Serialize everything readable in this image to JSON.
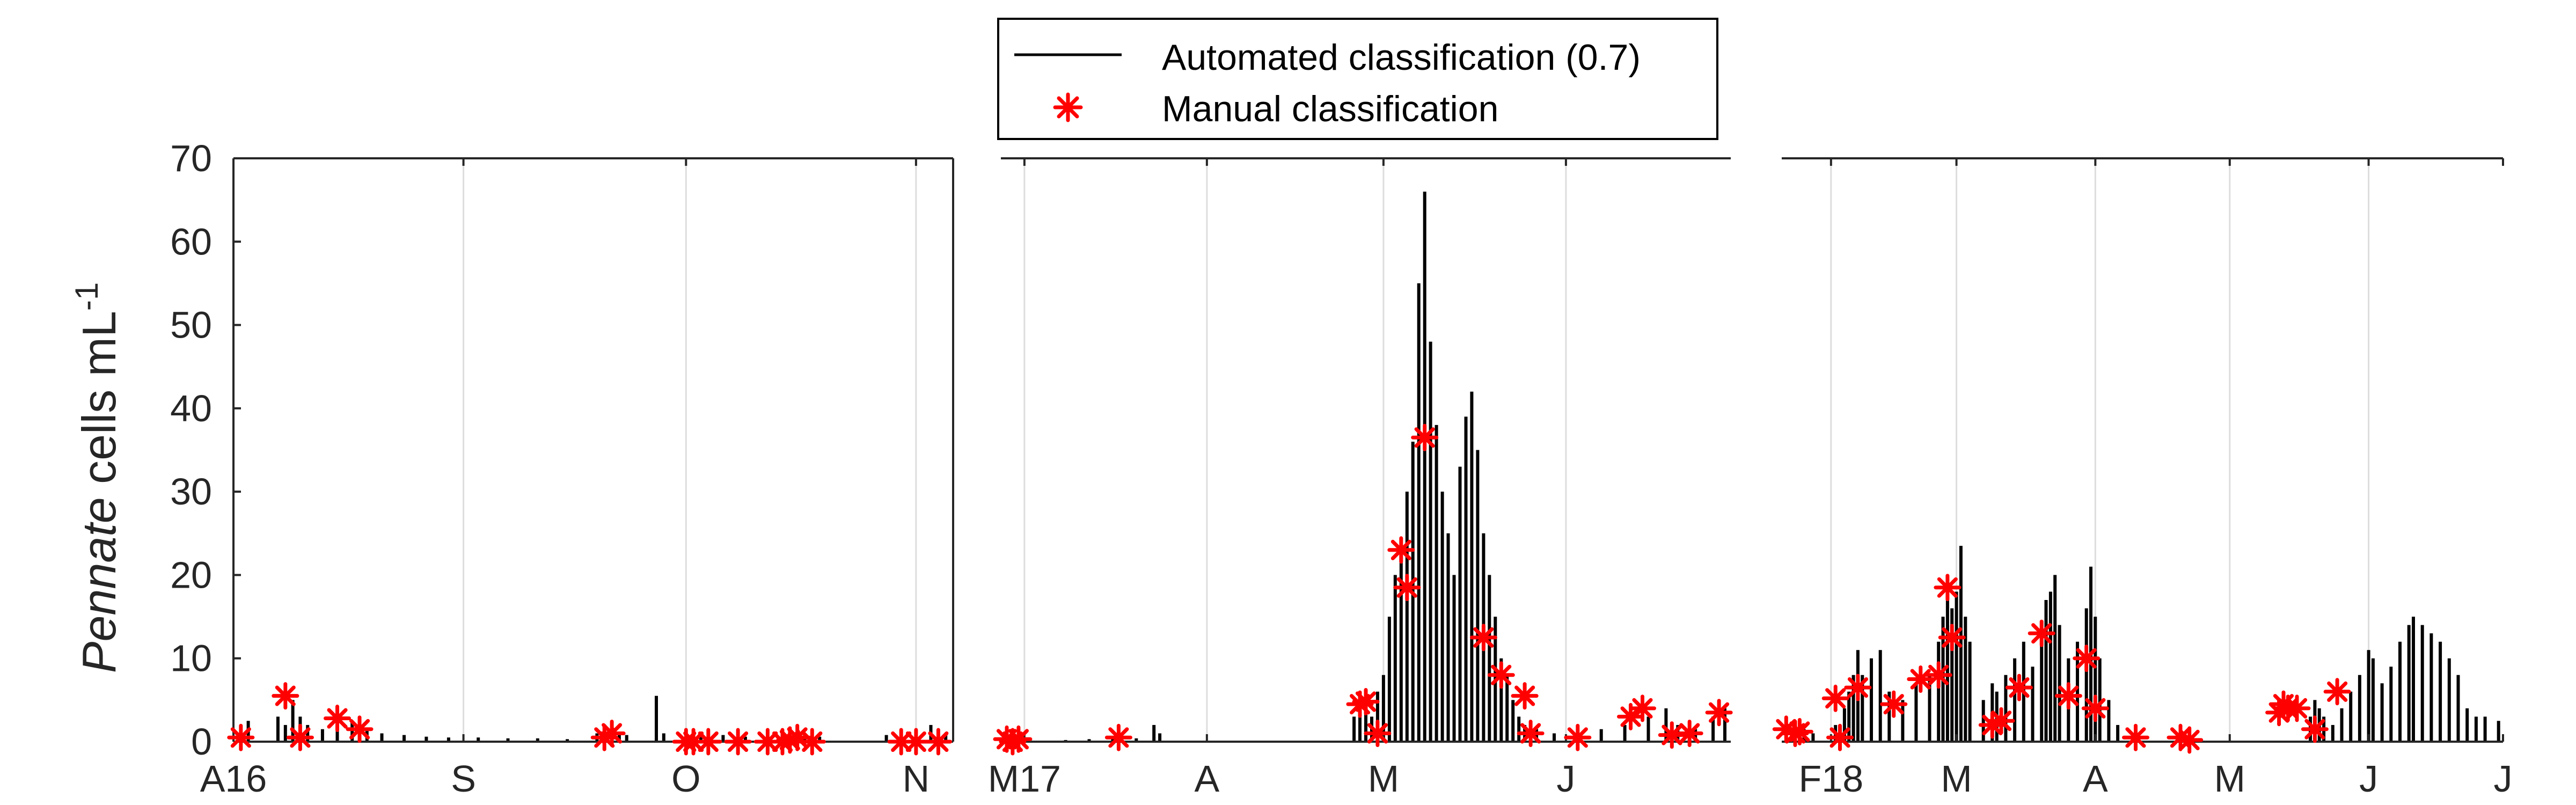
{
  "figure": {
    "ylabel_italic": "Pennate",
    "ylabel_rest": " cells mL",
    "ylabel_sup": "-1"
  },
  "legend": {
    "items": [
      {
        "label": "Automated classification (0.7)",
        "marker": "line",
        "color": "#000000"
      },
      {
        "label": "Manual classification",
        "marker": "asterisk",
        "color": "#ff0000"
      }
    ]
  },
  "colors": {
    "automated": "#000000",
    "manual": "#ff0000",
    "grid": "#dddddd",
    "axis": "#262626"
  },
  "chart_data": [
    {
      "type": "bar",
      "panel": "left",
      "xlim": [
        "2016-08-01",
        "2016-11-06"
      ],
      "ylim": [
        0,
        70
      ],
      "yticks": [
        0,
        10,
        20,
        30,
        40,
        50,
        60,
        70
      ],
      "xticks": [
        {
          "date": "2016-08-01",
          "label": "A16"
        },
        {
          "date": "2016-09-01",
          "label": "S"
        },
        {
          "date": "2016-10-01",
          "label": "O"
        },
        {
          "date": "2016-11-01",
          "label": "N"
        }
      ],
      "grid_x": true,
      "series": [
        {
          "name": "Automated classification (0.7)",
          "kind": "bars",
          "points": [
            [
              "2016-08-03",
              2.5
            ],
            [
              "2016-08-07",
              3.0
            ],
            [
              "2016-08-08",
              2.0
            ],
            [
              "2016-08-09",
              5.0
            ],
            [
              "2016-08-10",
              3.0
            ],
            [
              "2016-08-11",
              2.0
            ],
            [
              "2016-08-13",
              1.5
            ],
            [
              "2016-08-15",
              2.0
            ],
            [
              "2016-08-17",
              2.5
            ],
            [
              "2016-08-19",
              1.5
            ],
            [
              "2016-08-21",
              1.0
            ],
            [
              "2016-08-24",
              0.8
            ],
            [
              "2016-08-27",
              0.6
            ],
            [
              "2016-08-30",
              0.5
            ],
            [
              "2016-09-03",
              0.5
            ],
            [
              "2016-09-07",
              0.4
            ],
            [
              "2016-09-11",
              0.4
            ],
            [
              "2016-09-15",
              0.3
            ],
            [
              "2016-09-19",
              1.0
            ],
            [
              "2016-09-21",
              1.5
            ],
            [
              "2016-09-22",
              1.0
            ],
            [
              "2016-09-23",
              0.8
            ],
            [
              "2016-09-27",
              5.5
            ],
            [
              "2016-09-28",
              1.0
            ],
            [
              "2016-10-01",
              0.8
            ],
            [
              "2016-10-03",
              1.0
            ],
            [
              "2016-10-06",
              0.8
            ],
            [
              "2016-10-09",
              0.6
            ],
            [
              "2016-10-12",
              1.0
            ],
            [
              "2016-10-14",
              0.8
            ],
            [
              "2016-10-16",
              1.2
            ],
            [
              "2016-10-17",
              1.0
            ],
            [
              "2016-10-19",
              0.6
            ],
            [
              "2016-10-28",
              0.8
            ],
            [
              "2016-10-30",
              1.5
            ],
            [
              "2016-11-01",
              1.0
            ],
            [
              "2016-11-03",
              2.0
            ],
            [
              "2016-11-05",
              1.0
            ]
          ]
        },
        {
          "name": "Manual classification",
          "kind": "asterisk",
          "points": [
            [
              "2016-08-02",
              0.5
            ],
            [
              "2016-08-08",
              5.5
            ],
            [
              "2016-08-10",
              0.5
            ],
            [
              "2016-08-15",
              2.8
            ],
            [
              "2016-08-18",
              1.5
            ],
            [
              "2016-09-20",
              0.5
            ],
            [
              "2016-09-21",
              1.0
            ],
            [
              "2016-10-01",
              0.0
            ],
            [
              "2016-10-02",
              0.0
            ],
            [
              "2016-10-04",
              0.0
            ],
            [
              "2016-10-08",
              0.0
            ],
            [
              "2016-10-12",
              0.0
            ],
            [
              "2016-10-14",
              0.0
            ],
            [
              "2016-10-15",
              0.2
            ],
            [
              "2016-10-16",
              0.5
            ],
            [
              "2016-10-18",
              0.0
            ],
            [
              "2016-10-30",
              0.0
            ],
            [
              "2016-11-01",
              0.0
            ],
            [
              "2016-11-04",
              0.0
            ]
          ]
        }
      ]
    },
    {
      "type": "bar",
      "panel": "middle",
      "xlim": [
        "2017-02-25",
        "2017-06-29"
      ],
      "ylim": [
        0,
        70
      ],
      "xticks": [
        {
          "date": "2017-03-01",
          "label": "M17"
        },
        {
          "date": "2017-04-01",
          "label": "A"
        },
        {
          "date": "2017-05-01",
          "label": "M"
        },
        {
          "date": "2017-06-01",
          "label": "J"
        }
      ],
      "grid_x": true,
      "series": [
        {
          "name": "Automated classification (0.7)",
          "kind": "bars",
          "points": [
            [
              "2017-03-01",
              0.2
            ],
            [
              "2017-03-08",
              0.2
            ],
            [
              "2017-03-12",
              0.3
            ],
            [
              "2017-03-16",
              0.5
            ],
            [
              "2017-03-20",
              0.4
            ],
            [
              "2017-03-23",
              2.0
            ],
            [
              "2017-03-24",
              1.0
            ],
            [
              "2017-04-26",
              3.0
            ],
            [
              "2017-04-27",
              4.0
            ],
            [
              "2017-04-28",
              5.0
            ],
            [
              "2017-04-29",
              3.0
            ],
            [
              "2017-04-30",
              6.0
            ],
            [
              "2017-05-01",
              8.0
            ],
            [
              "2017-05-02",
              15.0
            ],
            [
              "2017-05-03",
              20.0
            ],
            [
              "2017-05-04",
              24.0
            ],
            [
              "2017-05-05",
              30.0
            ],
            [
              "2017-05-06",
              36.0
            ],
            [
              "2017-05-07",
              55.0
            ],
            [
              "2017-05-08",
              66.0
            ],
            [
              "2017-05-09",
              48.0
            ],
            [
              "2017-05-10",
              38.0
            ],
            [
              "2017-05-11",
              30.0
            ],
            [
              "2017-05-12",
              25.0
            ],
            [
              "2017-05-13",
              20.0
            ],
            [
              "2017-05-14",
              33.0
            ],
            [
              "2017-05-15",
              39.0
            ],
            [
              "2017-05-16",
              42.0
            ],
            [
              "2017-05-17",
              35.0
            ],
            [
              "2017-05-18",
              25.0
            ],
            [
              "2017-05-19",
              20.0
            ],
            [
              "2017-05-20",
              15.0
            ],
            [
              "2017-05-21",
              10.0
            ],
            [
              "2017-05-22",
              8.0
            ],
            [
              "2017-05-23",
              5.0
            ],
            [
              "2017-05-24",
              3.0
            ],
            [
              "2017-05-25",
              2.0
            ],
            [
              "2017-05-27",
              1.5
            ],
            [
              "2017-05-30",
              1.0
            ],
            [
              "2017-06-03",
              1.0
            ],
            [
              "2017-06-07",
              1.5
            ],
            [
              "2017-06-11",
              2.0
            ],
            [
              "2017-06-15",
              3.0
            ],
            [
              "2017-06-18",
              4.0
            ],
            [
              "2017-06-20",
              2.0
            ],
            [
              "2017-06-23",
              1.5
            ],
            [
              "2017-06-26",
              3.0
            ],
            [
              "2017-06-28",
              4.0
            ]
          ]
        },
        {
          "name": "Manual classification",
          "kind": "asterisk",
          "points": [
            [
              "2017-02-26",
              0.3
            ],
            [
              "2017-02-27",
              0.0
            ],
            [
              "2017-02-28",
              0.3
            ],
            [
              "2017-03-17",
              0.5
            ],
            [
              "2017-04-27",
              4.5
            ],
            [
              "2017-04-28",
              4.8
            ],
            [
              "2017-04-30",
              1.0
            ],
            [
              "2017-05-04",
              23.0
            ],
            [
              "2017-05-05",
              18.5
            ],
            [
              "2017-05-08",
              36.5
            ],
            [
              "2017-05-18",
              12.5
            ],
            [
              "2017-05-21",
              8.0
            ],
            [
              "2017-05-25",
              5.5
            ],
            [
              "2017-05-26",
              1.0
            ],
            [
              "2017-06-03",
              0.5
            ],
            [
              "2017-06-12",
              3.0
            ],
            [
              "2017-06-14",
              4.0
            ],
            [
              "2017-06-19",
              0.8
            ],
            [
              "2017-06-22",
              1.0
            ],
            [
              "2017-06-27",
              3.5
            ]
          ]
        }
      ]
    },
    {
      "type": "bar",
      "panel": "right",
      "xlim": [
        "2018-01-21",
        "2018-07-01"
      ],
      "ylim": [
        0,
        70
      ],
      "xticks": [
        {
          "date": "2018-02-01",
          "label": "F18"
        },
        {
          "date": "2018-03-01",
          "label": "M"
        },
        {
          "date": "2018-04-01",
          "label": "A"
        },
        {
          "date": "2018-05-01",
          "label": "M"
        },
        {
          "date": "2018-06-01",
          "label": "J"
        },
        {
          "date": "2018-07-01",
          "label": "J"
        }
      ],
      "grid_x": true,
      "series": [
        {
          "name": "Automated classification (0.7)",
          "kind": "bars",
          "points": [
            [
              "2018-01-22",
              1.5
            ],
            [
              "2018-01-24",
              2.0
            ],
            [
              "2018-01-26",
              1.5
            ],
            [
              "2018-01-28",
              1.0
            ],
            [
              "2018-02-02",
              2.0
            ],
            [
              "2018-02-04",
              4.0
            ],
            [
              "2018-02-05",
              6.0
            ],
            [
              "2018-02-06",
              8.0
            ],
            [
              "2018-02-07",
              11.0
            ],
            [
              "2018-02-08",
              8.0
            ],
            [
              "2018-02-10",
              10.0
            ],
            [
              "2018-02-12",
              11.0
            ],
            [
              "2018-02-14",
              6.0
            ],
            [
              "2018-02-17",
              5.0
            ],
            [
              "2018-02-20",
              7.0
            ],
            [
              "2018-02-23",
              8.0
            ],
            [
              "2018-02-25",
              12.0
            ],
            [
              "2018-02-26",
              15.0
            ],
            [
              "2018-02-27",
              20.0
            ],
            [
              "2018-02-28",
              16.0
            ],
            [
              "2018-03-01",
              18.0
            ],
            [
              "2018-03-02",
              23.5
            ],
            [
              "2018-03-03",
              15.0
            ],
            [
              "2018-03-04",
              12.0
            ],
            [
              "2018-03-07",
              5.0
            ],
            [
              "2018-03-09",
              7.0
            ],
            [
              "2018-03-10",
              6.0
            ],
            [
              "2018-03-12",
              8.0
            ],
            [
              "2018-03-14",
              10.0
            ],
            [
              "2018-03-16",
              12.0
            ],
            [
              "2018-03-18",
              9.0
            ],
            [
              "2018-03-20",
              13.0
            ],
            [
              "2018-03-21",
              17.0
            ],
            [
              "2018-03-22",
              18.0
            ],
            [
              "2018-03-23",
              20.0
            ],
            [
              "2018-03-24",
              14.0
            ],
            [
              "2018-03-26",
              10.0
            ],
            [
              "2018-03-28",
              12.0
            ],
            [
              "2018-03-30",
              16.0
            ],
            [
              "2018-03-31",
              21.0
            ],
            [
              "2018-04-01",
              15.0
            ],
            [
              "2018-04-02",
              10.0
            ],
            [
              "2018-04-04",
              5.0
            ],
            [
              "2018-04-06",
              2.0
            ],
            [
              "2018-05-19",
              3.0
            ],
            [
              "2018-05-20",
              5.0
            ],
            [
              "2018-05-21",
              4.0
            ],
            [
              "2018-05-22",
              3.0
            ],
            [
              "2018-05-24",
              2.0
            ],
            [
              "2018-05-26",
              4.0
            ],
            [
              "2018-05-28",
              6.0
            ],
            [
              "2018-05-30",
              8.0
            ],
            [
              "2018-06-01",
              11.0
            ],
            [
              "2018-06-02",
              10.0
            ],
            [
              "2018-06-04",
              7.0
            ],
            [
              "2018-06-06",
              9.0
            ],
            [
              "2018-06-08",
              12.0
            ],
            [
              "2018-06-10",
              14.0
            ],
            [
              "2018-06-11",
              15.0
            ],
            [
              "2018-06-13",
              14.0
            ],
            [
              "2018-06-15",
              13.0
            ],
            [
              "2018-06-17",
              12.0
            ],
            [
              "2018-06-19",
              10.0
            ],
            [
              "2018-06-21",
              8.0
            ],
            [
              "2018-06-23",
              4.0
            ],
            [
              "2018-06-25",
              3.0
            ],
            [
              "2018-06-27",
              3.0
            ],
            [
              "2018-06-30",
              2.5
            ]
          ]
        },
        {
          "name": "Manual classification",
          "kind": "asterisk",
          "points": [
            [
              "2018-01-22",
              1.5
            ],
            [
              "2018-01-24",
              1.0
            ],
            [
              "2018-01-25",
              1.2
            ],
            [
              "2018-02-02",
              5.2
            ],
            [
              "2018-02-03",
              0.5
            ],
            [
              "2018-02-07",
              6.5
            ],
            [
              "2018-02-15",
              4.5
            ],
            [
              "2018-02-21",
              7.5
            ],
            [
              "2018-02-25",
              8.0
            ],
            [
              "2018-02-27",
              18.5
            ],
            [
              "2018-02-28",
              12.5
            ],
            [
              "2018-03-09",
              2.0
            ],
            [
              "2018-03-11",
              2.5
            ],
            [
              "2018-03-15",
              6.5
            ],
            [
              "2018-03-20",
              13.0
            ],
            [
              "2018-03-26",
              5.5
            ],
            [
              "2018-03-30",
              10.0
            ],
            [
              "2018-04-01",
              4.0
            ],
            [
              "2018-04-10",
              0.5
            ],
            [
              "2018-04-20",
              0.5
            ],
            [
              "2018-04-22",
              0.2
            ],
            [
              "2018-05-12",
              3.5
            ],
            [
              "2018-05-13",
              4.5
            ],
            [
              "2018-05-14",
              4.0
            ],
            [
              "2018-05-16",
              4.0
            ],
            [
              "2018-05-20",
              1.5
            ],
            [
              "2018-05-25",
              6.0
            ]
          ]
        }
      ]
    }
  ]
}
